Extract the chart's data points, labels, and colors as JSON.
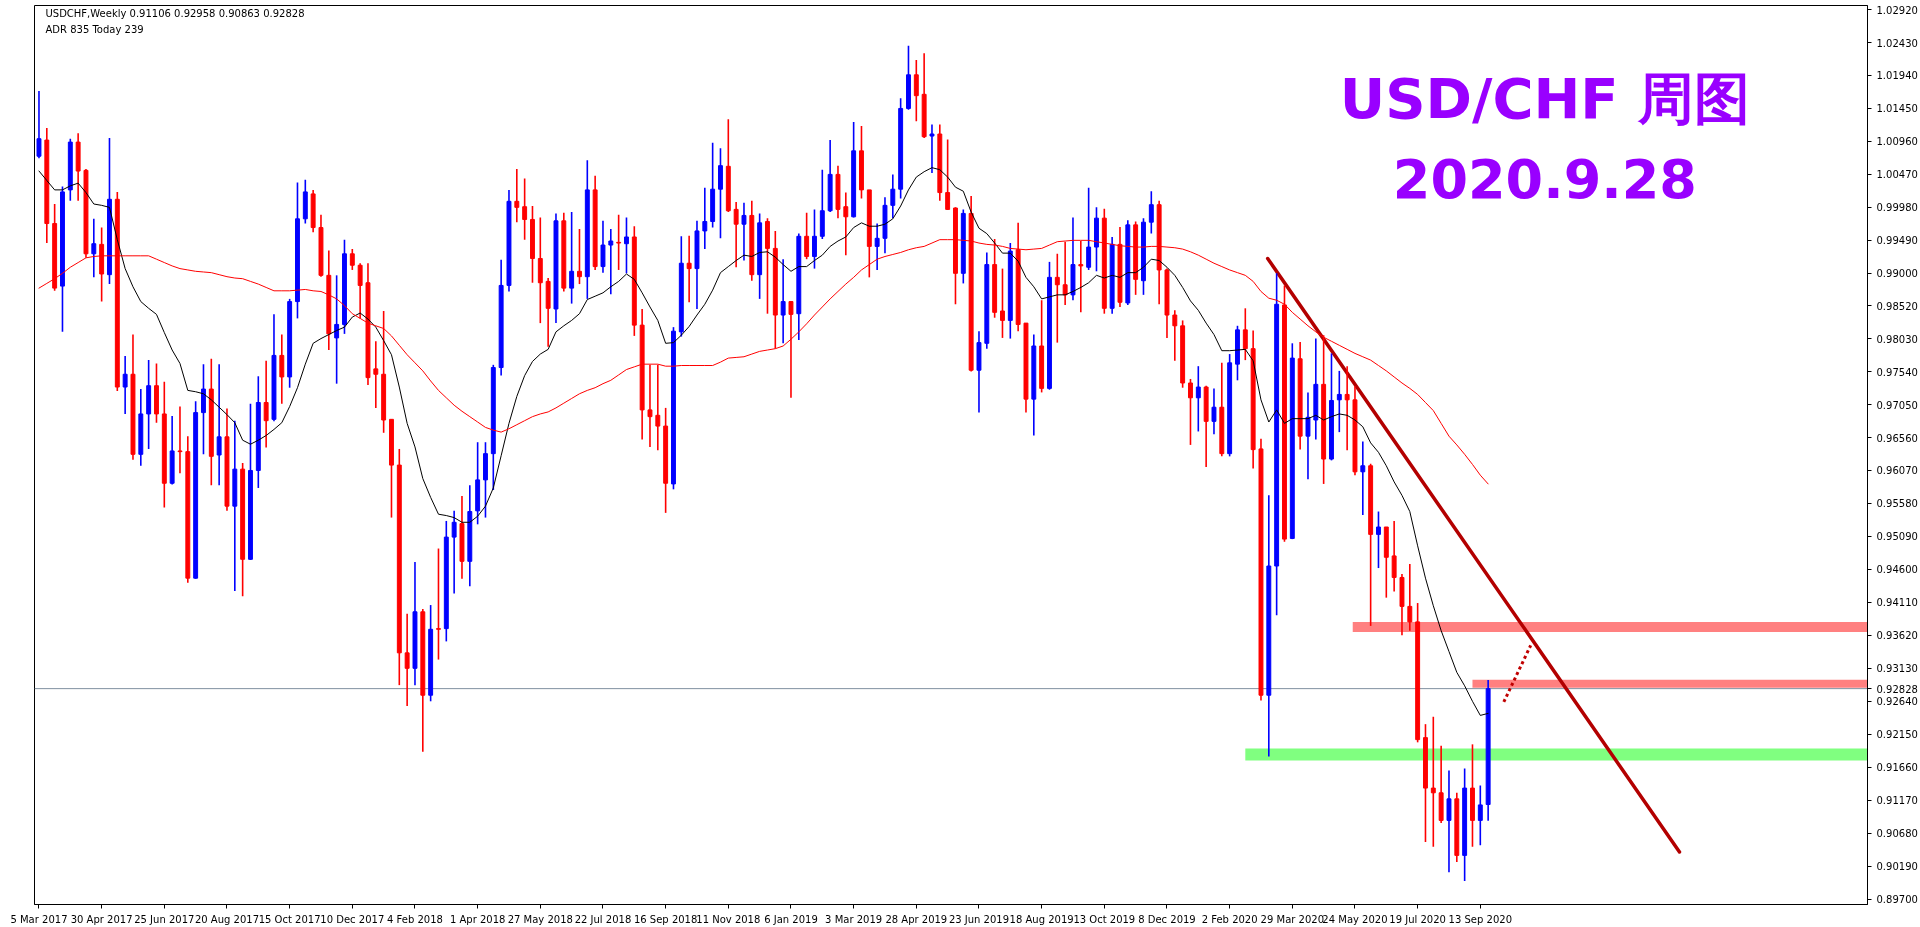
{
  "chart_data": {
    "type": "candlestick",
    "title": "USD/CHF 周图",
    "subtitle": "2020.9.28",
    "annotations": [
      "USDCHF,Weekly 0.91106 0.92958 0.90863 0.92828",
      "ADR 835 Today 239"
    ],
    "x": [
      "2017-03-05",
      "2017-03-12",
      "2017-03-19",
      "2017-03-26",
      "2017-04-02",
      "2017-04-09",
      "2017-04-16",
      "2017-04-23",
      "2017-04-30",
      "2017-05-07",
      "2017-05-14",
      "2017-05-21",
      "2017-05-28",
      "2017-06-04",
      "2017-06-11",
      "2017-06-18",
      "2017-06-25",
      "2017-07-02",
      "2017-07-09",
      "2017-07-16",
      "2017-07-23",
      "2017-07-30",
      "2017-08-06",
      "2017-08-13",
      "2017-08-20",
      "2017-08-27",
      "2017-09-03",
      "2017-09-10",
      "2017-09-17",
      "2017-09-24",
      "2017-10-01",
      "2017-10-08",
      "2017-10-15",
      "2017-10-22",
      "2017-10-29",
      "2017-11-05",
      "2017-11-12",
      "2017-11-19",
      "2017-11-26",
      "2017-12-03",
      "2017-12-10",
      "2017-12-17",
      "2017-12-24",
      "2017-12-31",
      "2018-01-07",
      "2018-01-14",
      "2018-01-21",
      "2018-01-28",
      "2018-02-04",
      "2018-02-11",
      "2018-02-18",
      "2018-02-25",
      "2018-03-04",
      "2018-03-11",
      "2018-03-18",
      "2018-03-25",
      "2018-04-01",
      "2018-04-08",
      "2018-04-15",
      "2018-04-22",
      "2018-04-29",
      "2018-05-06",
      "2018-05-13",
      "2018-05-20",
      "2018-05-27",
      "2018-06-03",
      "2018-06-10",
      "2018-06-17",
      "2018-06-24",
      "2018-07-01",
      "2018-07-08",
      "2018-07-15",
      "2018-07-22",
      "2018-07-29",
      "2018-08-05",
      "2018-08-12",
      "2018-08-19",
      "2018-08-26",
      "2018-09-02",
      "2018-09-09",
      "2018-09-16",
      "2018-09-23",
      "2018-09-30",
      "2018-10-07",
      "2018-10-14",
      "2018-10-21",
      "2018-10-28",
      "2018-11-04",
      "2018-11-11",
      "2018-11-18",
      "2018-11-25",
      "2018-12-02",
      "2018-12-09",
      "2018-12-16",
      "2018-12-23",
      "2018-12-30",
      "2019-01-06",
      "2019-01-13",
      "2019-01-20",
      "2019-01-27",
      "2019-02-03",
      "2019-02-10",
      "2019-02-17",
      "2019-02-24",
      "2019-03-03",
      "2019-03-10",
      "2019-03-17",
      "2019-03-24",
      "2019-03-31",
      "2019-04-07",
      "2019-04-14",
      "2019-04-21",
      "2019-04-28",
      "2019-05-05",
      "2019-05-12",
      "2019-05-19",
      "2019-05-26",
      "2019-06-02",
      "2019-06-09",
      "2019-06-16",
      "2019-06-23",
      "2019-06-30",
      "2019-07-07",
      "2019-07-14",
      "2019-07-21",
      "2019-07-28",
      "2019-08-04",
      "2019-08-11",
      "2019-08-18",
      "2019-08-25",
      "2019-09-01",
      "2019-09-08",
      "2019-09-15",
      "2019-09-22",
      "2019-09-29",
      "2019-10-06",
      "2019-10-13",
      "2019-10-20",
      "2019-10-27",
      "2019-11-03",
      "2019-11-10",
      "2019-11-17",
      "2019-11-24",
      "2019-12-01",
      "2019-12-08",
      "2019-12-15",
      "2019-12-22",
      "2019-12-29",
      "2020-01-05",
      "2020-01-12",
      "2020-01-19",
      "2020-01-26",
      "2020-02-02",
      "2020-02-09",
      "2020-02-16",
      "2020-02-23",
      "2020-03-01",
      "2020-03-08",
      "2020-03-15",
      "2020-03-22",
      "2020-03-29",
      "2020-04-05",
      "2020-04-12",
      "2020-04-19",
      "2020-04-26",
      "2020-05-03",
      "2020-05-10",
      "2020-05-17",
      "2020-05-24",
      "2020-05-31",
      "2020-06-07",
      "2020-06-14",
      "2020-06-21",
      "2020-06-28",
      "2020-07-05",
      "2020-07-12",
      "2020-07-19",
      "2020-07-26",
      "2020-08-02",
      "2020-08-09",
      "2020-08-16",
      "2020-08-23",
      "2020-08-30",
      "2020-09-06",
      "2020-09-13",
      "2020-09-20"
    ],
    "ohlc": [
      [
        1.0074,
        1.0171,
        1.0071,
        1.01
      ],
      [
        1.0098,
        1.0116,
        0.9945,
        0.9974
      ],
      [
        0.9974,
        1.0003,
        0.9874,
        0.9878
      ],
      [
        0.9881,
        1.0029,
        0.9813,
        1.0021
      ],
      [
        1.0024,
        1.01,
        1.0008,
        1.0095
      ],
      [
        1.0095,
        1.0108,
        1.0008,
        1.0052
      ],
      [
        1.0053,
        1.0055,
        0.9923,
        0.9929
      ],
      [
        0.9929,
        0.9981,
        0.9894,
        0.9944
      ],
      [
        0.9943,
        0.9968,
        0.9858,
        0.9899
      ],
      [
        0.9898,
        1.0101,
        0.9884,
        1.001
      ],
      [
        1.001,
        1.0021,
        0.9725,
        0.9731
      ],
      [
        0.9731,
        0.9777,
        0.9691,
        0.975
      ],
      [
        0.975,
        0.9809,
        0.9623,
        0.9631
      ],
      [
        0.9631,
        0.9728,
        0.9614,
        0.9691
      ],
      [
        0.9691,
        0.9771,
        0.9639,
        0.9733
      ],
      [
        0.9733,
        0.9766,
        0.9678,
        0.9691
      ],
      [
        0.9691,
        0.9739,
        0.9552,
        0.9588
      ],
      [
        0.9588,
        0.9688,
        0.9586,
        0.9636
      ],
      [
        0.9636,
        0.9702,
        0.9603,
        0.9635
      ],
      [
        0.9635,
        0.9658,
        0.944,
        0.9447
      ],
      [
        0.9447,
        0.971,
        0.9446,
        0.9693
      ],
      [
        0.9693,
        0.9765,
        0.9631,
        0.9728
      ],
      [
        0.9728,
        0.9773,
        0.9585,
        0.9628
      ],
      [
        0.963,
        0.9765,
        0.9585,
        0.9657
      ],
      [
        0.9657,
        0.9699,
        0.9547,
        0.9554
      ],
      [
        0.9554,
        0.9681,
        0.9428,
        0.9609
      ],
      [
        0.9609,
        0.9618,
        0.942,
        0.9475
      ],
      [
        0.9475,
        0.9706,
        0.9474,
        0.9607
      ],
      [
        0.9607,
        0.9747,
        0.9581,
        0.9708
      ],
      [
        0.9708,
        0.977,
        0.9641,
        0.9681
      ],
      [
        0.9683,
        0.9839,
        0.968,
        0.9778
      ],
      [
        0.9778,
        0.9809,
        0.9706,
        0.9746
      ],
      [
        0.9746,
        0.9862,
        0.973,
        0.9858
      ],
      [
        0.9858,
        1.0035,
        0.9833,
        0.9981
      ],
      [
        0.9981,
        1.0039,
        0.9974,
        1.0021
      ],
      [
        1.0018,
        1.0024,
        0.9961,
        0.9968
      ],
      [
        0.9968,
        0.9987,
        0.9895,
        0.9897
      ],
      [
        0.9897,
        0.9934,
        0.9786,
        0.981
      ],
      [
        0.9804,
        0.9897,
        0.9736,
        0.9824
      ],
      [
        0.9824,
        0.995,
        0.981,
        0.9929
      ],
      [
        0.9929,
        0.9936,
        0.9905,
        0.9912
      ],
      [
        0.9912,
        0.9915,
        0.9833,
        0.9882
      ],
      [
        0.9886,
        0.9915,
        0.9734,
        0.9745
      ],
      [
        0.9758,
        0.9799,
        0.97,
        0.975
      ],
      [
        0.975,
        0.9844,
        0.9663,
        0.9682
      ],
      [
        0.9683,
        0.9683,
        0.9537,
        0.9615
      ],
      [
        0.9615,
        0.9639,
        0.9288,
        0.9336
      ],
      [
        0.9336,
        0.9394,
        0.9257,
        0.9313
      ],
      [
        0.9313,
        0.9471,
        0.9288,
        0.9397
      ],
      [
        0.9397,
        0.9401,
        0.9189,
        0.9273
      ],
      [
        0.9273,
        0.9407,
        0.9264,
        0.9371
      ],
      [
        0.9372,
        0.9491,
        0.9326,
        0.9371
      ],
      [
        0.9372,
        0.9532,
        0.9353,
        0.9508
      ],
      [
        0.9508,
        0.9547,
        0.9424,
        0.953
      ],
      [
        0.9528,
        0.9569,
        0.9446,
        0.9472
      ],
      [
        0.9472,
        0.9585,
        0.9435,
        0.9546
      ],
      [
        0.9547,
        0.9649,
        0.9527,
        0.9593
      ],
      [
        0.9593,
        0.9649,
        0.9537,
        0.9632
      ],
      [
        0.9632,
        0.9764,
        0.9578,
        0.976
      ],
      [
        0.976,
        0.992,
        0.9748,
        0.9882
      ],
      [
        0.9882,
        1.0024,
        0.9873,
        1.0007
      ],
      [
        1.0007,
        1.0055,
        0.9976,
        0.9998
      ],
      [
        0.9999,
        1.0041,
        0.995,
        0.998
      ],
      [
        0.998,
        1.0,
        0.9886,
        0.9922
      ],
      [
        0.9922,
        0.9983,
        0.9826,
        0.9886
      ],
      [
        0.9888,
        0.9893,
        0.9791,
        0.9848
      ],
      [
        0.9847,
        0.9989,
        0.9826,
        0.9978
      ],
      [
        0.9978,
        0.999,
        0.9873,
        0.9878
      ],
      [
        0.9878,
        0.9991,
        0.9855,
        0.9903
      ],
      [
        0.9903,
        0.9966,
        0.9884,
        0.9895
      ],
      [
        0.9895,
        1.0068,
        0.9862,
        1.0024
      ],
      [
        1.0024,
        1.0045,
        0.9905,
        0.991
      ],
      [
        0.991,
        0.9978,
        0.9901,
        0.9942
      ],
      [
        0.9942,
        0.9966,
        0.9869,
        0.9948
      ],
      [
        0.9946,
        0.9987,
        0.9905,
        0.9945
      ],
      [
        0.9944,
        0.9983,
        0.99,
        0.9954
      ],
      [
        0.9954,
        0.997,
        0.9807,
        0.9823
      ],
      [
        0.9823,
        0.9847,
        0.9653,
        0.9697
      ],
      [
        0.9697,
        0.9764,
        0.9642,
        0.9687
      ],
      [
        0.9689,
        0.9764,
        0.9637,
        0.9673
      ],
      [
        0.9673,
        0.97,
        0.9544,
        0.9588
      ],
      [
        0.9587,
        0.982,
        0.9579,
        0.9814
      ],
      [
        0.9813,
        0.9955,
        0.9806,
        0.9915
      ],
      [
        0.9915,
        0.9956,
        0.9857,
        0.9907
      ],
      [
        0.9907,
        0.9978,
        0.9847,
        0.9963
      ],
      [
        0.9963,
        1.0027,
        0.9936,
        0.9977
      ],
      [
        0.9977,
        1.0094,
        0.9968,
        1.0025
      ],
      [
        1.0025,
        1.0086,
        0.9952,
        1.006
      ],
      [
        1.0059,
        1.0129,
        0.9991,
        0.9993
      ],
      [
        0.9995,
        1.0006,
        0.9909,
        0.9973
      ],
      [
        0.9973,
        1.0005,
        0.9919,
        0.9986
      ],
      [
        0.9986,
        1.0008,
        0.9889,
        0.9898
      ],
      [
        0.9898,
        0.9989,
        0.9862,
        0.9975
      ],
      [
        0.9977,
        0.9982,
        0.984,
        0.9937
      ],
      [
        0.9937,
        0.9963,
        0.9788,
        0.9838
      ],
      [
        0.9838,
        0.9921,
        0.9796,
        0.9858
      ],
      [
        0.9858,
        0.9858,
        0.9715,
        0.9839
      ],
      [
        0.984,
        0.9959,
        0.9801,
        0.9955
      ],
      [
        0.9955,
        0.999,
        0.9921,
        0.9925
      ],
      [
        0.9925,
        0.9995,
        0.9907,
        0.9955
      ],
      [
        0.9955,
        1.0054,
        0.9951,
        0.9993
      ],
      [
        0.9993,
        1.0098,
        0.9991,
        1.0047
      ],
      [
        1.0047,
        1.006,
        0.9982,
        0.9995
      ],
      [
        0.9999,
        1.002,
        0.9927,
        0.9984
      ],
      [
        0.9984,
        1.0125,
        0.9983,
        1.0082
      ],
      [
        1.0082,
        1.0119,
        1.0011,
        1.0024
      ],
      [
        1.0024,
        1.0024,
        0.9894,
        0.994
      ],
      [
        0.994,
        0.9974,
        0.9905,
        0.9952
      ],
      [
        0.9952,
        1.0013,
        0.993,
        1.0001
      ],
      [
        1.0001,
        1.0047,
        0.9982,
        1.0025
      ],
      [
        1.0025,
        1.016,
        1.0011,
        1.0145
      ],
      [
        1.0145,
        1.0238,
        1.0143,
        1.0195
      ],
      [
        1.0195,
        1.0217,
        1.0126,
        1.0164
      ],
      [
        1.0166,
        1.0227,
        1.0101,
        1.0103
      ],
      [
        1.0104,
        1.0121,
        1.0049,
        1.0107
      ],
      [
        1.0107,
        1.0121,
        1.0008,
        1.002
      ],
      [
        1.002,
        1.0099,
        0.9994,
        0.9995
      ],
      [
        0.9997,
        0.9998,
        0.9854,
        0.99
      ],
      [
        0.99,
        0.9995,
        0.9885,
        0.9989
      ],
      [
        0.9989,
        1.0015,
        0.9754,
        0.9756
      ],
      [
        0.9756,
        0.9814,
        0.9693,
        0.9797
      ],
      [
        0.9796,
        0.9931,
        0.9788,
        0.9913
      ],
      [
        0.9913,
        0.9951,
        0.9834,
        0.9842
      ],
      [
        0.9844,
        0.9907,
        0.9804,
        0.983
      ],
      [
        0.983,
        0.9945,
        0.9803,
        0.9933
      ],
      [
        0.9935,
        0.9975,
        0.9814,
        0.9824
      ],
      [
        0.9826,
        0.9826,
        0.9693,
        0.9713
      ],
      [
        0.9713,
        0.9809,
        0.9659,
        0.9792
      ],
      [
        0.9792,
        0.986,
        0.9723,
        0.9729
      ],
      [
        0.9729,
        0.9917,
        0.9727,
        0.9894
      ],
      [
        0.9894,
        0.9929,
        0.9797,
        0.9883
      ],
      [
        0.9883,
        0.9947,
        0.9853,
        0.9868
      ],
      [
        0.9868,
        0.9983,
        0.986,
        0.9913
      ],
      [
        0.9913,
        0.9948,
        0.9842,
        0.9911
      ],
      [
        0.9909,
        1.0027,
        0.9905,
        0.9939
      ],
      [
        0.9939,
        0.9998,
        0.9903,
        0.9982
      ],
      [
        0.9982,
        0.9996,
        0.984,
        0.9848
      ],
      [
        0.9848,
        0.9954,
        0.984,
        0.9943
      ],
      [
        0.9943,
        0.9969,
        0.985,
        0.9857
      ],
      [
        0.9856,
        0.9979,
        0.9853,
        0.9972
      ],
      [
        0.9972,
        0.9977,
        0.9868,
        0.9891
      ],
      [
        0.9889,
        0.9982,
        0.9868,
        0.9976
      ],
      [
        0.9976,
        1.0022,
        0.9959,
        1.0002
      ],
      [
        1.0002,
        1.0008,
        0.9854,
        0.9905
      ],
      [
        0.9905,
        0.9907,
        0.9804,
        0.9838
      ],
      [
        0.9838,
        0.9845,
        0.977,
        0.9822
      ],
      [
        0.9822,
        0.983,
        0.973,
        0.9737
      ],
      [
        0.9737,
        0.9743,
        0.9645,
        0.9715
      ],
      [
        0.9715,
        0.9762,
        0.9665,
        0.9731
      ],
      [
        0.9731,
        0.9733,
        0.9612,
        0.968
      ],
      [
        0.968,
        0.9729,
        0.9661,
        0.9701
      ],
      [
        0.9701,
        0.9767,
        0.9628,
        0.9632
      ],
      [
        0.9632,
        0.978,
        0.9628,
        0.9767
      ],
      [
        0.9765,
        0.9822,
        0.9741,
        0.9816
      ],
      [
        0.9816,
        0.9848,
        0.9771,
        0.9788
      ],
      [
        0.9788,
        0.9815,
        0.961,
        0.9638
      ],
      [
        0.9639,
        0.9654,
        0.9265,
        0.9273
      ],
      [
        0.9273,
        0.957,
        0.9182,
        0.9465
      ],
      [
        0.9465,
        0.99,
        0.9392,
        0.9854
      ],
      [
        0.9853,
        0.9882,
        0.9501,
        0.9505
      ],
      [
        0.9506,
        0.9796,
        0.9505,
        0.9774
      ],
      [
        0.9773,
        0.9798,
        0.9638,
        0.9658
      ],
      [
        0.9658,
        0.9723,
        0.9594,
        0.9686
      ],
      [
        0.9682,
        0.9803,
        0.9653,
        0.9735
      ],
      [
        0.9735,
        0.9808,
        0.9587,
        0.9624
      ],
      [
        0.9624,
        0.9781,
        0.9622,
        0.9711
      ],
      [
        0.9712,
        0.9755,
        0.9664,
        0.972
      ],
      [
        0.972,
        0.9762,
        0.9637,
        0.9712
      ],
      [
        0.9712,
        0.9732,
        0.96,
        0.9605
      ],
      [
        0.9605,
        0.965,
        0.9541,
        0.9614
      ],
      [
        0.9614,
        0.9617,
        0.9376,
        0.9512
      ],
      [
        0.9512,
        0.9546,
        0.9462,
        0.9523
      ],
      [
        0.9523,
        0.9523,
        0.9418,
        0.9478
      ],
      [
        0.948,
        0.9532,
        0.9427,
        0.9448
      ],
      [
        0.9448,
        0.9453,
        0.9362,
        0.9405
      ],
      [
        0.9405,
        0.9468,
        0.9369,
        0.9382
      ],
      [
        0.9382,
        0.941,
        0.9203,
        0.9207
      ],
      [
        0.921,
        0.923,
        0.9055,
        0.9135
      ],
      [
        0.9135,
        0.9241,
        0.9048,
        0.9128
      ],
      [
        0.9128,
        0.9198,
        0.9083,
        0.9087
      ],
      [
        0.9087,
        0.9161,
        0.901,
        0.9119
      ],
      [
        0.9119,
        0.9128,
        0.9025,
        0.9035
      ],
      [
        0.9035,
        0.9164,
        0.8997,
        0.9135
      ],
      [
        0.9135,
        0.92,
        0.9048,
        0.9087
      ],
      [
        0.9087,
        0.9139,
        0.905,
        0.911
      ],
      [
        0.91106,
        0.92958,
        0.90863,
        0.92828
      ]
    ],
    "colors": [
      "#0000ff",
      "#ff0000",
      "#ff0000",
      "#0000ff",
      "#0000ff",
      "#ff0000",
      "#ff0000",
      "#0000ff",
      "#ff0000",
      "#0000ff",
      "#ff0000",
      "#0000ff",
      "#ff0000",
      "#0000ff",
      "#0000ff",
      "#ff0000",
      "#ff0000",
      "#0000ff",
      "#ff0000",
      "#ff0000",
      "#0000ff",
      "#0000ff",
      "#ff0000",
      "#0000ff",
      "#ff0000",
      "#0000ff",
      "#ff0000",
      "#0000ff",
      "#0000ff",
      "#ff0000",
      "#0000ff",
      "#ff0000",
      "#0000ff",
      "#0000ff",
      "#0000ff",
      "#ff0000",
      "#ff0000",
      "#ff0000",
      "#0000ff",
      "#0000ff",
      "#ff0000",
      "#ff0000",
      "#ff0000",
      "#ff0000",
      "#ff0000",
      "#ff0000",
      "#ff0000",
      "#ff0000",
      "#0000ff",
      "#ff0000",
      "#0000ff",
      "#ff0000",
      "#0000ff",
      "#0000ff",
      "#ff0000",
      "#0000ff",
      "#0000ff",
      "#0000ff",
      "#0000ff",
      "#0000ff",
      "#0000ff",
      "#ff0000",
      "#ff0000",
      "#ff0000",
      "#ff0000",
      "#ff0000",
      "#0000ff",
      "#ff0000",
      "#0000ff",
      "#ff0000",
      "#0000ff",
      "#ff0000",
      "#0000ff",
      "#0000ff",
      "#ff0000",
      "#0000ff",
      "#ff0000",
      "#ff0000",
      "#ff0000",
      "#ff0000",
      "#ff0000",
      "#0000ff",
      "#0000ff",
      "#ff0000",
      "#0000ff",
      "#0000ff",
      "#0000ff",
      "#0000ff",
      "#ff0000",
      "#ff0000",
      "#0000ff",
      "#ff0000",
      "#0000ff",
      "#ff0000",
      "#ff0000",
      "#0000ff",
      "#ff0000",
      "#0000ff",
      "#ff0000",
      "#0000ff",
      "#0000ff",
      "#0000ff",
      "#ff0000",
      "#ff0000",
      "#0000ff",
      "#ff0000",
      "#ff0000",
      "#0000ff",
      "#0000ff",
      "#0000ff",
      "#0000ff",
      "#0000ff",
      "#ff0000",
      "#ff0000",
      "#0000ff",
      "#ff0000",
      "#ff0000",
      "#ff0000",
      "#0000ff",
      "#ff0000",
      "#0000ff",
      "#0000ff",
      "#ff0000",
      "#ff0000",
      "#0000ff",
      "#ff0000",
      "#ff0000",
      "#0000ff",
      "#ff0000",
      "#0000ff",
      "#ff0000",
      "#ff0000",
      "#0000ff",
      "#ff0000",
      "#0000ff",
      "#0000ff",
      "#ff0000",
      "#0000ff",
      "#ff0000",
      "#0000ff",
      "#ff0000",
      "#0000ff",
      "#0000ff",
      "#ff0000",
      "#ff0000",
      "#ff0000",
      "#ff0000",
      "#ff0000",
      "#0000ff",
      "#ff0000",
      "#0000ff",
      "#ff0000",
      "#0000ff",
      "#0000ff",
      "#ff0000",
      "#ff0000",
      "#ff0000",
      "#0000ff",
      "#0000ff",
      "#ff0000",
      "#0000ff",
      "#ff0000",
      "#0000ff",
      "#0000ff",
      "#ff0000",
      "#0000ff",
      "#0000ff",
      "#ff0000",
      "#ff0000",
      "#0000ff",
      "#ff0000",
      "#0000ff",
      "#ff0000",
      "#ff0000",
      "#ff0000",
      "#ff0000",
      "#ff0000",
      "#ff0000",
      "#ff0000",
      "#ff0000",
      "#0000ff",
      "#ff0000",
      "#0000ff",
      "#ff0000",
      "#0000ff",
      "#0000ff"
    ],
    "series": [
      {
        "type": "line",
        "color": "#80ff80",
        "x": [
          "2020-02-16",
          "2021-08-25"
        ],
        "values": [
          null,
          null
        ],
        "lower": [
          0.9176,
          0.9176
        ],
        "upper": [
          0.9194,
          0.9194
        ]
      },
      {
        "type": "line",
        "color": "#ff8080",
        "x": [
          "2020-05-22",
          "2021-08-25"
        ],
        "values": [
          null,
          null
        ],
        "lower": [
          0.9367,
          0.9367
        ],
        "upper": [
          0.9382,
          0.9382
        ]
      },
      {
        "type": "line",
        "color": "#ff8080",
        "x": [
          "2020-09-06",
          "2021-08-25"
        ],
        "values": [
          null,
          null
        ],
        "lower": [
          0.9284,
          0.9284
        ],
        "upper": [
          0.9296,
          0.9296
        ]
      },
      {
        "type": "line",
        "color": "#000000",
        "values": [
          1.0052,
          1.0038,
          1.0024,
          1.0024,
          1.003,
          1.0034,
          1.002,
          1.0003,
          1.0001,
          0.9998,
          0.995,
          0.9907,
          0.988,
          0.9858,
          0.9848,
          0.9839,
          0.9812,
          0.9786,
          0.9766,
          0.9726,
          0.9724,
          0.9721,
          0.9712,
          0.9701,
          0.969,
          0.9678,
          0.9652,
          0.9646,
          0.9652,
          0.9659,
          0.9668,
          0.9678,
          0.9702,
          0.973,
          0.9765,
          0.9796,
          0.9803,
          0.9809,
          0.9815,
          0.982,
          0.9835,
          0.9841,
          0.9832,
          0.982,
          0.98,
          0.9779,
          0.9731,
          0.9677,
          0.9642,
          0.9595,
          0.9567,
          0.9542,
          0.954,
          0.9537,
          0.953,
          0.953,
          0.9539,
          0.9554,
          0.9581,
          0.9629,
          0.9677,
          0.9717,
          0.9748,
          0.9769,
          0.978,
          0.9787,
          0.9813,
          0.9822,
          0.983,
          0.984,
          0.9861,
          0.9866,
          0.9871,
          0.988,
          0.9888,
          0.9899,
          0.9891,
          0.9871,
          0.985,
          0.983,
          0.9796,
          0.9797,
          0.9808,
          0.9821,
          0.9838,
          0.9854,
          0.9875,
          0.9901,
          0.991,
          0.9919,
          0.9927,
          0.9925,
          0.9931,
          0.9932,
          0.9924,
          0.9913,
          0.9903,
          0.991,
          0.991,
          0.9919,
          0.9927,
          0.994,
          0.9948,
          0.9954,
          0.9968,
          0.9975,
          0.997,
          0.997,
          0.9973,
          0.9981,
          1.0,
          1.0024,
          1.0043,
          1.0051,
          1.0057,
          1.0054,
          1.0043,
          1.0028,
          1.0022,
          0.9991,
          0.9967,
          0.9959,
          0.9945,
          0.993,
          0.993,
          0.9918,
          0.9894,
          0.988,
          0.9862,
          0.9865,
          0.9868,
          0.9868,
          0.9873,
          0.9879,
          0.9886,
          0.9897,
          0.9893,
          0.9897,
          0.9894,
          0.9901,
          0.9901,
          0.9909,
          0.9921,
          0.9919,
          0.9909,
          0.9897,
          0.9879,
          0.9859,
          0.9845,
          0.9826,
          0.9809,
          0.9785,
          0.9785,
          0.9786,
          0.9787,
          0.977,
          0.9712,
          0.9679,
          0.9697,
          0.9677,
          0.9684,
          0.9684,
          0.9684,
          0.9689,
          0.9682,
          0.9687,
          0.9691,
          0.9689,
          0.9682,
          0.9672,
          0.9648,
          0.9634,
          0.9614,
          0.959,
          0.957,
          0.9546,
          0.9495,
          0.9447,
          0.9406,
          0.9369,
          0.9338,
          0.9307,
          0.9287,
          0.9264,
          0.9243,
          0.9246
        ]
      },
      {
        "type": "line",
        "color": "#ff0000",
        "values": [
          0.9878,
          0.9885,
          0.9892,
          0.99,
          0.9909,
          0.9916,
          0.9923,
          0.9925,
          0.9926,
          0.9926,
          0.9926,
          0.9926,
          0.9926,
          0.9926,
          0.9926,
          0.9921,
          0.9916,
          0.9911,
          0.9907,
          0.9905,
          0.9903,
          0.9902,
          0.9901,
          0.9898,
          0.9895,
          0.9893,
          0.9892,
          0.9888,
          0.9884,
          0.9879,
          0.9874,
          0.9874,
          0.9874,
          0.9875,
          0.9876,
          0.9874,
          0.9873,
          0.9868,
          0.9862,
          0.9852,
          0.984,
          0.9833,
          0.9826,
          0.9822,
          0.9818,
          0.9807,
          0.9793,
          0.9779,
          0.9767,
          0.9755,
          0.974,
          0.9726,
          0.9715,
          0.9704,
          0.9695,
          0.9687,
          0.9679,
          0.9671,
          0.9667,
          0.9664,
          0.9669,
          0.9675,
          0.9681,
          0.9687,
          0.9691,
          0.9694,
          0.97,
          0.9707,
          0.9714,
          0.9721,
          0.9726,
          0.973,
          0.9736,
          0.9741,
          0.9749,
          0.9757,
          0.9761,
          0.9765,
          0.9765,
          0.9765,
          0.9762,
          0.9762,
          0.9763,
          0.9763,
          0.9763,
          0.9763,
          0.9763,
          0.9768,
          0.9774,
          0.9775,
          0.9776,
          0.978,
          0.9784,
          0.9786,
          0.9788,
          0.9792,
          0.9802,
          0.9813,
          0.9825,
          0.9838,
          0.985,
          0.9862,
          0.9873,
          0.9884,
          0.9894,
          0.9905,
          0.9913,
          0.9921,
          0.9925,
          0.9928,
          0.9931,
          0.9935,
          0.9938,
          0.994,
          0.9945,
          0.995,
          0.995,
          0.995,
          0.9949,
          0.9948,
          0.9945,
          0.9943,
          0.9942,
          0.994,
          0.9937,
          0.9936,
          0.9935,
          0.9936,
          0.9937,
          0.9942,
          0.9947,
          0.9948,
          0.9949,
          0.9949,
          0.9949,
          0.9947,
          0.9945,
          0.9943,
          0.9941,
          0.994,
          0.9939,
          0.9939,
          0.994,
          0.994,
          0.9939,
          0.9938,
          0.9936,
          0.9932,
          0.9927,
          0.9921,
          0.9915,
          0.991,
          0.9905,
          0.9901,
          0.9897,
          0.9888,
          0.9873,
          0.9863,
          0.986,
          0.9854,
          0.9842,
          0.9832,
          0.9822,
          0.9813,
          0.9805,
          0.9799,
          0.9793,
          0.9787,
          0.9781,
          0.9776,
          0.9771,
          0.9763,
          0.9755,
          0.9746,
          0.9737,
          0.9729,
          0.972,
          0.9708,
          0.9696,
          0.9677,
          0.9658,
          0.9645,
          0.9631,
          0.9616,
          0.96,
          0.9587
        ]
      },
      {
        "type": "line",
        "color": "#b30000",
        "x": [
          "2020-03-07",
          "2021-03-10"
        ],
        "values": [
          0.9922,
          0.904
        ]
      },
      {
        "type": "line",
        "color": "#c00000",
        "line_style": "dotted",
        "x": [
          "2020-10-04",
          "2020-10-28"
        ],
        "values": [
          0.9263,
          0.9347
        ]
      }
    ],
    "ref_lines": [
      {
        "axis": "y",
        "value": 0.92828,
        "label": "0.92828",
        "color": "#8090a0"
      }
    ],
    "xlim": [
      "2017-03-01",
      "2021-08-25"
    ],
    "xticks": [
      {
        "value": "2017-03-05",
        "label": "5 Mar 2017"
      },
      {
        "value": "2017-04-30",
        "label": "30 Apr 2017"
      },
      {
        "value": "2017-06-25",
        "label": "25 Jun 2017"
      },
      {
        "value": "2017-08-20",
        "label": "20 Aug 2017"
      },
      {
        "value": "2017-10-15",
        "label": "15 Oct 2017"
      },
      {
        "value": "2017-12-10",
        "label": "10 Dec 2017"
      },
      {
        "value": "2018-02-04",
        "label": "4 Feb 2018"
      },
      {
        "value": "2018-04-01",
        "label": "1 Apr 2018"
      },
      {
        "value": "2018-05-27",
        "label": "27 May 2018"
      },
      {
        "value": "2018-07-22",
        "label": "22 Jul 2018"
      },
      {
        "value": "2018-09-16",
        "label": "16 Sep 2018"
      },
      {
        "value": "2018-11-11",
        "label": "11 Nov 2018"
      },
      {
        "value": "2019-01-06",
        "label": "6 Jan 2019"
      },
      {
        "value": "2019-03-03",
        "label": "3 Mar 2019"
      },
      {
        "value": "2019-04-28",
        "label": "28 Apr 2019"
      },
      {
        "value": "2019-06-23",
        "label": "23 Jun 2019"
      },
      {
        "value": "2019-08-18",
        "label": "18 Aug 2019"
      },
      {
        "value": "2019-10-13",
        "label": "13 Oct 2019"
      },
      {
        "value": "2019-12-08",
        "label": "8 Dec 2019"
      },
      {
        "value": "2020-02-02",
        "label": "2 Feb 2020"
      },
      {
        "value": "2020-03-29",
        "label": "29 Mar 2020"
      },
      {
        "value": "2020-05-24",
        "label": "24 May 2020"
      },
      {
        "value": "2020-07-19",
        "label": "19 Jul 2020"
      },
      {
        "value": "2020-09-13",
        "label": "13 Sep 2020"
      }
    ],
    "ylim": [
      0.8962,
      1.0298
    ],
    "yticks": [
      {
        "value": 1.0292,
        "label": "1.02920"
      },
      {
        "value": 1.0243,
        "label": "1.02430"
      },
      {
        "value": 1.0194,
        "label": "1.01940"
      },
      {
        "value": 1.0145,
        "label": "1.01450"
      },
      {
        "value": 1.0096,
        "label": "1.00960"
      },
      {
        "value": 1.0047,
        "label": "1.00470"
      },
      {
        "value": 0.9998,
        "label": "0.99980"
      },
      {
        "value": 0.9949,
        "label": "0.99490"
      },
      {
        "value": 0.99,
        "label": "0.99000"
      },
      {
        "value": 0.9852,
        "label": "0.98520"
      },
      {
        "value": 0.9803,
        "label": "0.98030"
      },
      {
        "value": 0.9754,
        "label": "0.97540"
      },
      {
        "value": 0.9705,
        "label": "0.97050"
      },
      {
        "value": 0.9656,
        "label": "0.96560"
      },
      {
        "value": 0.9607,
        "label": "0.96070"
      },
      {
        "value": 0.9558,
        "label": "0.95580"
      },
      {
        "value": 0.9509,
        "label": "0.95090"
      },
      {
        "value": 0.946,
        "label": "0.94600"
      },
      {
        "value": 0.9411,
        "label": "0.94110"
      },
      {
        "value": 0.9362,
        "label": "0.93620"
      },
      {
        "value": 0.9313,
        "label": "0.93130"
      },
      {
        "value": 0.9264,
        "label": "0.92640"
      },
      {
        "value": 0.9215,
        "label": "0.92150"
      },
      {
        "value": 0.9166,
        "label": "0.91660"
      },
      {
        "value": 0.9117,
        "label": "0.91170"
      },
      {
        "value": 0.9068,
        "label": "0.90680"
      },
      {
        "value": 0.9019,
        "label": "0.90190"
      },
      {
        "value": 0.897,
        "label": "0.89700"
      }
    ]
  }
}
